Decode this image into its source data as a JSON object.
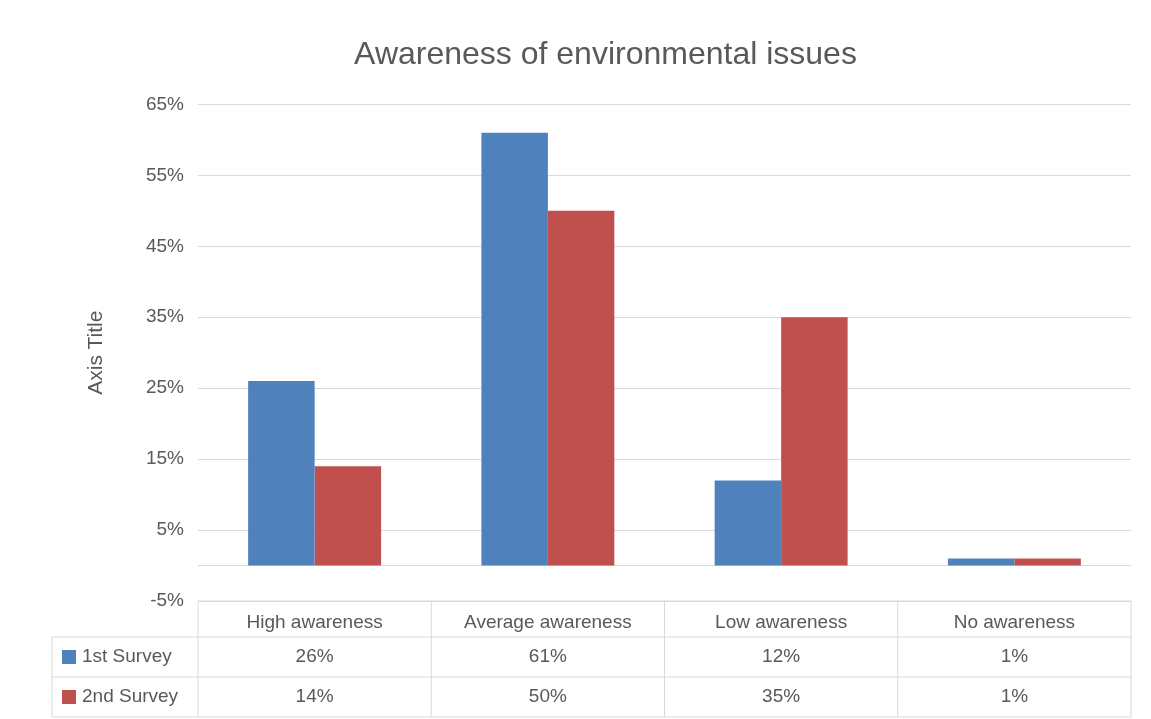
{
  "chart_data": {
    "type": "bar",
    "title": "Awareness of environmental issues",
    "ylabel": "Axis Title",
    "categories": [
      "High awareness",
      "Average awareness",
      "Low awareness",
      "No awareness"
    ],
    "series": [
      {
        "name": "1st Survey",
        "color": "#4f81bd",
        "values": [
          26,
          61,
          12,
          1
        ],
        "value_labels": [
          "26%",
          "61%",
          "12%",
          "1%"
        ]
      },
      {
        "name": "2nd Survey",
        "color": "#c0504d",
        "values": [
          14,
          50,
          35,
          1
        ],
        "value_labels": [
          "14%",
          "50%",
          "35%",
          "1%"
        ]
      }
    ],
    "ylim": [
      -5,
      65
    ],
    "yticks": [
      {
        "value": -5,
        "label": "-5%"
      },
      {
        "value": 5,
        "label": "5%"
      },
      {
        "value": 15,
        "label": "15%"
      },
      {
        "value": 25,
        "label": "25%"
      },
      {
        "value": 35,
        "label": "35%"
      },
      {
        "value": 45,
        "label": "45%"
      },
      {
        "value": 55,
        "label": "55%"
      },
      {
        "value": 65,
        "label": "65%"
      }
    ],
    "grid": "y",
    "legend": "bottom"
  }
}
